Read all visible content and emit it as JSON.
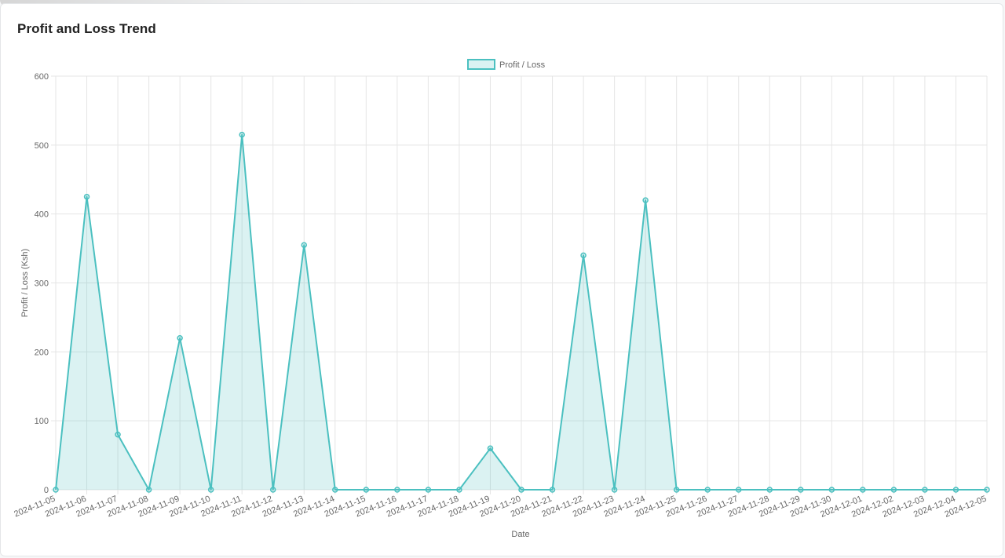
{
  "card": {
    "title": "Profit and Loss Trend"
  },
  "chart_data": {
    "type": "area",
    "x": [
      "2024-11-05",
      "2024-11-06",
      "2024-11-07",
      "2024-11-08",
      "2024-11-09",
      "2024-11-10",
      "2024-11-11",
      "2024-11-12",
      "2024-11-13",
      "2024-11-14",
      "2024-11-15",
      "2024-11-16",
      "2024-11-17",
      "2024-11-18",
      "2024-11-19",
      "2024-11-20",
      "2024-11-21",
      "2024-11-22",
      "2024-11-23",
      "2024-11-24",
      "2024-11-25",
      "2024-11-26",
      "2024-11-27",
      "2024-11-28",
      "2024-11-29",
      "2024-11-30",
      "2024-12-01",
      "2024-12-02",
      "2024-12-03",
      "2024-12-04",
      "2024-12-05"
    ],
    "series": [
      {
        "name": "Profit / Loss",
        "values": [
          0,
          425,
          80,
          0,
          220,
          0,
          515,
          0,
          355,
          0,
          0,
          0,
          0,
          0,
          60,
          0,
          0,
          340,
          0,
          420,
          0,
          0,
          0,
          0,
          0,
          0,
          0,
          0,
          0,
          0,
          0
        ]
      }
    ],
    "xlabel": "Date",
    "ylabel": "Profit / Loss (Ksh)",
    "ylim": [
      0,
      600
    ],
    "yticks": [
      0,
      100,
      200,
      300,
      400,
      500,
      600
    ],
    "grid": true,
    "legend_position": "top-center",
    "colors": {
      "line": "#4bc0c0",
      "fill": "rgba(75,192,192,0.2)",
      "grid": "#e5e5e5",
      "tick_text": "#666666"
    }
  }
}
